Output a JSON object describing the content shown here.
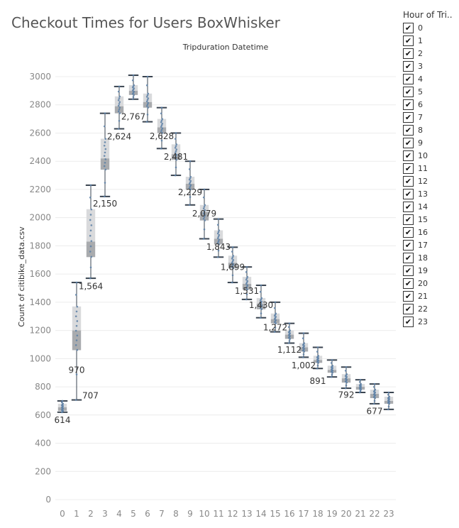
{
  "title": "Checkout Times for Users BoxWhisker",
  "legend": {
    "title": "Hour of Tri..",
    "check_glyph": "✔",
    "items": [
      "0",
      "1",
      "2",
      "3",
      "4",
      "5",
      "6",
      "7",
      "8",
      "9",
      "10",
      "11",
      "12",
      "13",
      "14",
      "15",
      "16",
      "17",
      "18",
      "19",
      "20",
      "21",
      "22",
      "23"
    ]
  },
  "chart_data": {
    "type": "boxplot",
    "title": "Tripduration Datetime",
    "ylabel": "Count of citibike_data.csv",
    "ylim": [
      0,
      3000
    ],
    "y_ticks": [
      0,
      200,
      400,
      600,
      800,
      1000,
      1200,
      1400,
      1600,
      1800,
      2000,
      2200,
      2400,
      2600,
      2800,
      3000
    ],
    "grid": true,
    "categories": [
      "0",
      "1",
      "2",
      "3",
      "4",
      "5",
      "6",
      "7",
      "8",
      "9",
      "10",
      "11",
      "12",
      "13",
      "14",
      "15",
      "16",
      "17",
      "18",
      "19",
      "20",
      "21",
      "22",
      "23"
    ],
    "boxes": [
      {
        "min": 620,
        "q1": 630,
        "median": 655,
        "q3": 680,
        "max": 700
      },
      {
        "min": 707,
        "q1": 1060,
        "median": 1200,
        "q3": 1370,
        "max": 1540
      },
      {
        "min": 1570,
        "q1": 1720,
        "median": 1830,
        "q3": 2060,
        "max": 2230
      },
      {
        "min": 2150,
        "q1": 2340,
        "median": 2420,
        "q3": 2560,
        "max": 2740
      },
      {
        "min": 2630,
        "q1": 2740,
        "median": 2790,
        "q3": 2860,
        "max": 2930
      },
      {
        "min": 2840,
        "q1": 2870,
        "median": 2900,
        "q3": 2940,
        "max": 3010
      },
      {
        "min": 2680,
        "q1": 2780,
        "median": 2820,
        "q3": 2880,
        "max": 3000
      },
      {
        "min": 2490,
        "q1": 2600,
        "median": 2640,
        "q3": 2700,
        "max": 2780
      },
      {
        "min": 2300,
        "q1": 2410,
        "median": 2450,
        "q3": 2520,
        "max": 2600
      },
      {
        "min": 2090,
        "q1": 2200,
        "median": 2240,
        "q3": 2290,
        "max": 2400
      },
      {
        "min": 1850,
        "q1": 1980,
        "median": 2040,
        "q3": 2090,
        "max": 2200
      },
      {
        "min": 1720,
        "q1": 1810,
        "median": 1850,
        "q3": 1910,
        "max": 1990
      },
      {
        "min": 1540,
        "q1": 1640,
        "median": 1680,
        "q3": 1730,
        "max": 1790
      },
      {
        "min": 1420,
        "q1": 1490,
        "median": 1530,
        "q3": 1580,
        "max": 1650
      },
      {
        "min": 1290,
        "q1": 1350,
        "median": 1390,
        "q3": 1430,
        "max": 1520
      },
      {
        "min": 1190,
        "q1": 1250,
        "median": 1280,
        "q3": 1320,
        "max": 1400
      },
      {
        "min": 1110,
        "q1": 1140,
        "median": 1170,
        "q3": 1200,
        "max": 1250
      },
      {
        "min": 1010,
        "q1": 1050,
        "median": 1080,
        "q3": 1110,
        "max": 1180
      },
      {
        "min": 930,
        "q1": 970,
        "median": 990,
        "q3": 1020,
        "max": 1080
      },
      {
        "min": 870,
        "q1": 900,
        "median": 920,
        "q3": 950,
        "max": 990
      },
      {
        "min": 790,
        "q1": 830,
        "median": 860,
        "q3": 890,
        "max": 940
      },
      {
        "min": 760,
        "q1": 780,
        "median": 800,
        "q3": 820,
        "max": 850
      },
      {
        "min": 680,
        "q1": 720,
        "median": 750,
        "q3": 780,
        "max": 820
      },
      {
        "min": 640,
        "q1": 680,
        "median": 700,
        "q3": 730,
        "max": 760
      }
    ],
    "data_labels": [
      {
        "category": "0",
        "value": 614,
        "text": "614"
      },
      {
        "category": "1",
        "value": 970,
        "text": "970"
      },
      {
        "category": "1",
        "value": 707,
        "text": "707"
      },
      {
        "category": "2",
        "value": 1564,
        "text": "1,564"
      },
      {
        "category": "3",
        "value": 2150,
        "text": "2,150"
      },
      {
        "category": "4",
        "value": 2624,
        "text": "2,624"
      },
      {
        "category": "5",
        "value": 2767,
        "text": "2,767"
      },
      {
        "category": "7",
        "value": 2628,
        "text": "2,628"
      },
      {
        "category": "8",
        "value": 2481,
        "text": "2,481"
      },
      {
        "category": "9",
        "value": 2229,
        "text": "2,229"
      },
      {
        "category": "10",
        "value": 2079,
        "text": "2,079"
      },
      {
        "category": "11",
        "value": 1843,
        "text": "1,843"
      },
      {
        "category": "12",
        "value": 1699,
        "text": "1,699"
      },
      {
        "category": "13",
        "value": 1531,
        "text": "1,531"
      },
      {
        "category": "14",
        "value": 1430,
        "text": "1,430"
      },
      {
        "category": "15",
        "value": 1272,
        "text": "1,272"
      },
      {
        "category": "16",
        "value": 1112,
        "text": "1,112"
      },
      {
        "category": "17",
        "value": 1002,
        "text": "1,002"
      },
      {
        "category": "18",
        "value": 891,
        "text": "891"
      },
      {
        "category": "20",
        "value": 792,
        "text": "792"
      },
      {
        "category": "22",
        "value": 677,
        "text": "677"
      }
    ],
    "colors": {
      "box_light": "#d9dadc",
      "box_dark": "#a9abae",
      "whisker": "#3a4450",
      "points": "#5b7fa6",
      "grid": "#ececec",
      "axis_text": "#888888",
      "label_text": "#333333"
    }
  }
}
